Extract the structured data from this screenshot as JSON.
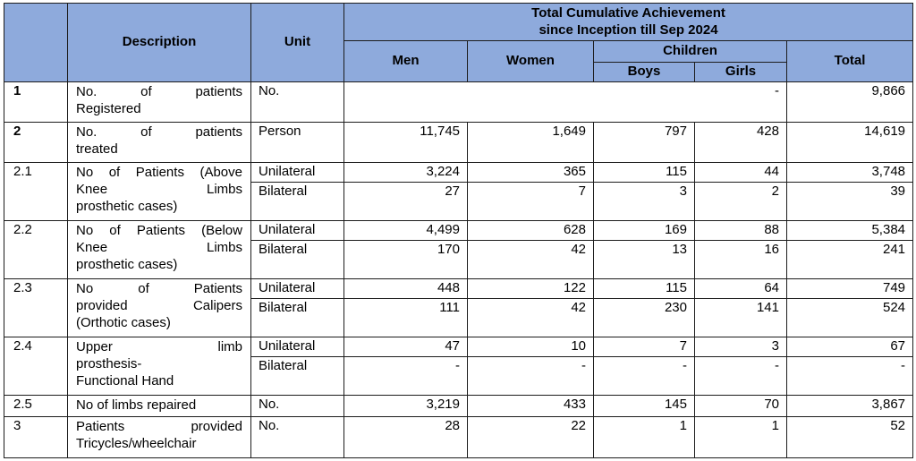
{
  "colors": {
    "header_bg": "#8EAADC",
    "border": "#1c1c1c",
    "text": "#000000",
    "page_bg": "#ffffff"
  },
  "header": {
    "description": "Description",
    "unit": "Unit",
    "span_title": [
      "Total Cumulative Achievement",
      "since Inception till Sep 2024"
    ],
    "men": "Men",
    "women": "Women",
    "children": "Children",
    "boys": "Boys",
    "girls": "Girls",
    "total": "Total"
  },
  "rows": {
    "r1": {
      "num": "1",
      "desc": [
        "No. of patients",
        "Registered"
      ],
      "unit": "No.",
      "merged": "-",
      "total": "9,866"
    },
    "r2": {
      "num": "2",
      "desc": [
        "No. of patients",
        "treated"
      ],
      "unit": "Person",
      "men": "11,745",
      "women": "1,649",
      "boys": "797",
      "girls": "428",
      "total": "14,619"
    },
    "r21": {
      "num": "2.1",
      "desc": [
        "No of Patients (Above",
        "Knee Limbs",
        "prosthetic cases)"
      ],
      "uni": {
        "unit": "Unilateral",
        "men": "3,224",
        "women": "365",
        "boys": "115",
        "girls": "44",
        "total": "3,748"
      },
      "bi": {
        "unit": "Bilateral",
        "men": "27",
        "women": "7",
        "boys": "3",
        "girls": "2",
        "total": "39"
      }
    },
    "r22": {
      "num": "2.2",
      "desc": [
        "No of Patients (Below",
        "Knee Limbs",
        "prosthetic cases)"
      ],
      "uni": {
        "unit": "Unilateral",
        "men": "4,499",
        "women": "628",
        "boys": "169",
        "girls": "88",
        "total": "5,384"
      },
      "bi": {
        "unit": "Bilateral",
        "men": "170",
        "women": "42",
        "boys": "13",
        "girls": "16",
        "total": "241"
      }
    },
    "r23": {
      "num": "2.3",
      "desc": [
        "No of Patients",
        "provided Calipers",
        "(Orthotic cases)"
      ],
      "uni": {
        "unit": "Unilateral",
        "men": "448",
        "women": "122",
        "boys": "115",
        "girls": "64",
        "total": "749"
      },
      "bi": {
        "unit": "Bilateral",
        "men": "111",
        "women": "42",
        "boys": "230",
        "girls": "141",
        "total": "524"
      }
    },
    "r24": {
      "num": "2.4",
      "desc": [
        "Upper limb",
        "prosthesis-",
        "Functional Hand"
      ],
      "uni": {
        "unit": "Unilateral",
        "men": "47",
        "women": "10",
        "boys": "7",
        "girls": "3",
        "total": "67"
      },
      "bi": {
        "unit": "Bilateral",
        "men": "-",
        "women": "-",
        "boys": "-",
        "girls": "-",
        "total": "-"
      }
    },
    "r25": {
      "num": "2.5",
      "desc": [
        "No of limbs repaired"
      ],
      "unit": "No.",
      "men": "3,219",
      "women": "433",
      "boys": "145",
      "girls": "70",
      "total": "3,867"
    },
    "r3": {
      "num": "3",
      "desc": [
        "Patients provided",
        "Tricycles/wheelchair"
      ],
      "unit": "No.",
      "men": "28",
      "women": "22",
      "boys": "1",
      "girls": "1",
      "total": "52"
    }
  }
}
